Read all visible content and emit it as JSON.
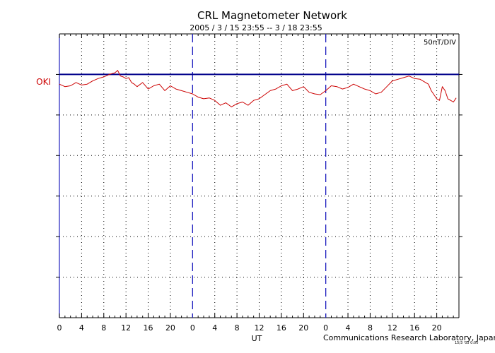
{
  "title": "CRL Magnetometer Network",
  "period": "2005 / 3 / 15   23:55 --  3 / 18   23:55",
  "scale": "50nT/DIV",
  "x_axis_label": "UT",
  "credit": "Communications Research Laboratory, Japan",
  "stamp": "15/3 '05 0:00",
  "colors": {
    "axis": "#000000",
    "station_line": "#00008b",
    "day_line": "#1f1fbf",
    "trace": "#cc0000",
    "grid": "#000000"
  },
  "chart_data": {
    "type": "line",
    "title": "CRL Magnetometer Network",
    "xlabel": "UT",
    "ylabel": "",
    "x_unit": "hours since start (UT)",
    "xlim": [
      0,
      72
    ],
    "x_tick_labels": [
      "0",
      "4",
      "8",
      "12",
      "16",
      "20",
      "0",
      "4",
      "8",
      "12",
      "16",
      "20",
      "0",
      "4",
      "8",
      "12",
      "16",
      "20"
    ],
    "day_boundaries": [
      24,
      48
    ],
    "ylim": [
      -300,
      50
    ],
    "y_unit": "nT relative to OKI baseline",
    "y_gridlines": [
      0,
      -50,
      -100,
      -150,
      -200,
      -250
    ],
    "series": [
      {
        "name": "OKI",
        "x": [
          0,
          1,
          2,
          3,
          4,
          5,
          6,
          7,
          8,
          9,
          10,
          10.5,
          11,
          11.5,
          12,
          12.5,
          13,
          13.5,
          14,
          15,
          16,
          17,
          18,
          19,
          20,
          21,
          22,
          23,
          24,
          25,
          26,
          27,
          28,
          29,
          30,
          31,
          32,
          33,
          34,
          35,
          36,
          37,
          38,
          39,
          40,
          41,
          42,
          43,
          44,
          45,
          46,
          47,
          48,
          49,
          50,
          51,
          52,
          53,
          54,
          55,
          56,
          57,
          58,
          59,
          60,
          61,
          62,
          63,
          64,
          65,
          66,
          66.5,
          67,
          67.5,
          68,
          68.5,
          69,
          69.5,
          70,
          71,
          71.5
        ],
        "values": [
          -12,
          -15,
          -14,
          -10,
          -13,
          -12,
          -8,
          -5,
          -3,
          0,
          2,
          5,
          -2,
          -3,
          -5,
          -4,
          -10,
          -12,
          -15,
          -10,
          -18,
          -14,
          -12,
          -20,
          -14,
          -18,
          -20,
          -22,
          -24,
          -28,
          -30,
          -29,
          -32,
          -38,
          -35,
          -40,
          -36,
          -34,
          -38,
          -32,
          -30,
          -25,
          -20,
          -18,
          -14,
          -12,
          -20,
          -18,
          -15,
          -22,
          -24,
          -25,
          -20,
          -14,
          -15,
          -18,
          -16,
          -12,
          -15,
          -18,
          -20,
          -24,
          -22,
          -15,
          -8,
          -6,
          -4,
          -2,
          -5,
          -6,
          -10,
          -12,
          -20,
          -25,
          -30,
          -32,
          -15,
          -20,
          -30,
          -34,
          -29
        ]
      }
    ],
    "station_label": "OKI",
    "scale_label": "50nT/DIV"
  }
}
